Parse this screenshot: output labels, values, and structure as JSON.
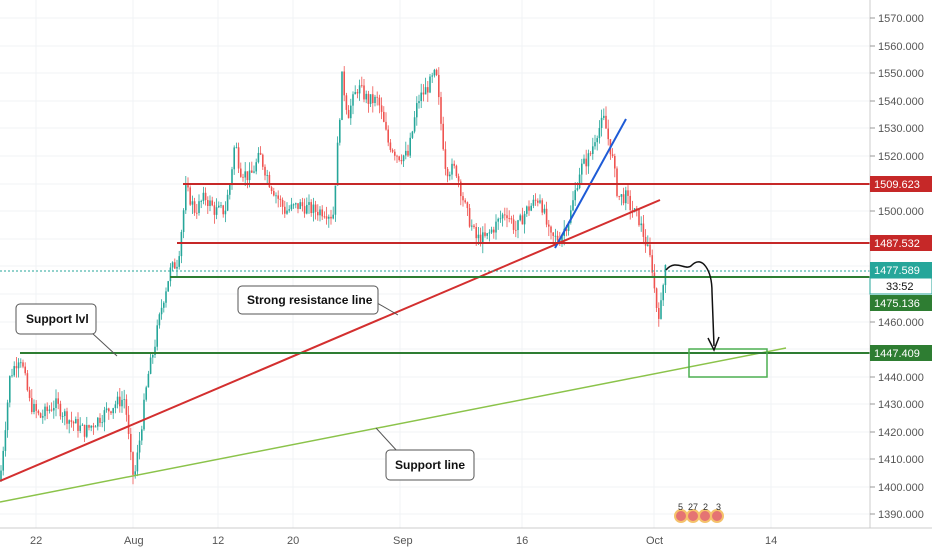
{
  "chart_data": {
    "type": "candlestick",
    "title": "",
    "xlabel": "",
    "ylabel": "",
    "ylim": [
      1385,
      1575
    ],
    "x_tick_labels": [
      "22",
      "Aug",
      "12",
      "20",
      "Sep",
      "16",
      "Oct",
      "14"
    ],
    "y_tick_labels": [
      "1390.000",
      "1400.000",
      "1410.000",
      "1420.000",
      "1430.000",
      "1440.000",
      "1450.000",
      "1460.000",
      "1470.000",
      "1480.000",
      "1490.000",
      "1500.000",
      "1510.000",
      "1520.000",
      "1530.000",
      "1540.000",
      "1550.000",
      "1560.000",
      "1570.000"
    ],
    "price_path": [
      [
        0,
        1402
      ],
      [
        10,
        1440
      ],
      [
        20,
        1448
      ],
      [
        30,
        1430
      ],
      [
        40,
        1425
      ],
      [
        55,
        1430
      ],
      [
        70,
        1424
      ],
      [
        85,
        1420
      ],
      [
        100,
        1425
      ],
      [
        115,
        1430
      ],
      [
        125,
        1432
      ],
      [
        130,
        1412
      ],
      [
        134,
        1402
      ],
      [
        140,
        1418
      ],
      [
        148,
        1440
      ],
      [
        155,
        1452
      ],
      [
        162,
        1466
      ],
      [
        170,
        1478
      ],
      [
        178,
        1482
      ],
      [
        186,
        1508
      ],
      [
        195,
        1500
      ],
      [
        205,
        1505
      ],
      [
        215,
        1500
      ],
      [
        225,
        1500
      ],
      [
        230,
        1510
      ],
      [
        235,
        1525
      ],
      [
        240,
        1515
      ],
      [
        250,
        1512
      ],
      [
        260,
        1520
      ],
      [
        270,
        1510
      ],
      [
        285,
        1500
      ],
      [
        300,
        1502
      ],
      [
        315,
        1500
      ],
      [
        325,
        1500
      ],
      [
        333,
        1498
      ],
      [
        338,
        1525
      ],
      [
        342,
        1548
      ],
      [
        348,
        1535
      ],
      [
        358,
        1545
      ],
      [
        368,
        1540
      ],
      [
        378,
        1540
      ],
      [
        388,
        1525
      ],
      [
        398,
        1520
      ],
      [
        408,
        1520
      ],
      [
        418,
        1540
      ],
      [
        428,
        1545
      ],
      [
        436,
        1550
      ],
      [
        440,
        1535
      ],
      [
        446,
        1515
      ],
      [
        456,
        1515
      ],
      [
        466,
        1500
      ],
      [
        476,
        1490
      ],
      [
        486,
        1490
      ],
      [
        496,
        1495
      ],
      [
        506,
        1500
      ],
      [
        516,
        1493
      ],
      [
        526,
        1500
      ],
      [
        540,
        1505
      ],
      [
        550,
        1490
      ],
      [
        560,
        1490
      ],
      [
        570,
        1498
      ],
      [
        580,
        1515
      ],
      [
        590,
        1520
      ],
      [
        596,
        1528
      ],
      [
        604,
        1533
      ],
      [
        612,
        1520
      ],
      [
        618,
        1505
      ],
      [
        626,
        1505
      ],
      [
        632,
        1500
      ],
      [
        638,
        1498
      ],
      [
        646,
        1488
      ],
      [
        652,
        1480
      ],
      [
        656,
        1466
      ],
      [
        660,
        1462
      ],
      [
        664,
        1476
      ],
      [
        666,
        1485
      ]
    ],
    "levels": [
      {
        "name": "1509.623",
        "value": 1509.623,
        "color": "#c62828"
      },
      {
        "name": "1487.532",
        "value": 1487.532,
        "color": "#c62828"
      },
      {
        "name": "1477.589",
        "value": 1477.589,
        "color": "#26a69a"
      },
      {
        "name": "1475.136",
        "value": 1475.136,
        "color": "#2e7d32"
      },
      {
        "name": "1447.409",
        "value": 1447.409,
        "color": "#2e7d32"
      }
    ],
    "countdown": "33:52",
    "annotations": [
      {
        "text": "Support lvl"
      },
      {
        "text": "Strong resistance line"
      },
      {
        "text": "Support line"
      }
    ],
    "event_markers": [
      "5",
      "27",
      "2",
      "3"
    ]
  }
}
